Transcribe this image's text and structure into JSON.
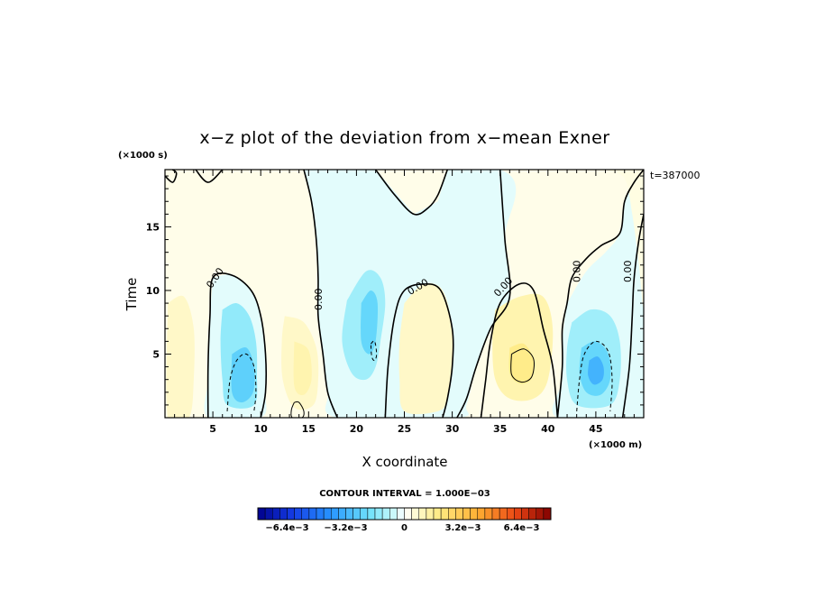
{
  "chart_data": {
    "type": "heatmap",
    "title": "x−z plot of the deviation from x−mean Exner",
    "xlabel": "X coordinate",
    "ylabel": "Time",
    "x_multiplier": "(×1000 m)",
    "y_multiplier": "(×1000 s)",
    "time_label": "t=387000",
    "xlim": [
      0,
      50
    ],
    "ylim": [
      0,
      19.5
    ],
    "x_ticks": [
      5,
      10,
      15,
      20,
      25,
      30,
      35,
      40,
      45
    ],
    "x_tick_labels": [
      "5",
      "10",
      "15",
      "20",
      "25",
      "30",
      "35",
      "40",
      "45"
    ],
    "y_ticks": [
      5,
      10,
      15
    ],
    "y_tick_labels": [
      "5",
      "10",
      "15"
    ],
    "contour_interval_text": "CONTOUR INTERVAL = 1.000E−03",
    "contour_labels": [
      {
        "text": "0.00",
        "x": 5.2,
        "y": 11.0,
        "angle": -55
      },
      {
        "text": "0.00",
        "x": 16.0,
        "y": 9.3,
        "angle": -90
      },
      {
        "text": "0.00",
        "x": 26.4,
        "y": 10.3,
        "angle": -30
      },
      {
        "text": "0.00",
        "x": 35.3,
        "y": 10.3,
        "angle": -48
      },
      {
        "text": "0.00",
        "x": 43.0,
        "y": 11.5,
        "angle": -90
      },
      {
        "text": "0.00",
        "x": 48.3,
        "y": 11.5,
        "angle": -90
      }
    ],
    "colorbar": {
      "vmin": -0.008,
      "vmax": 0.008,
      "n_colors": 40,
      "tick_labels": [
        "−6.4e−3",
        "−3.2e−3",
        "0",
        "3.2e−3",
        "6.4e−3"
      ],
      "tick_values": [
        -0.0064,
        -0.0032,
        0,
        0.0032,
        0.0064
      ]
    },
    "regions": [
      {
        "kind": "fill",
        "value": 0.0003,
        "points": [
          [
            0,
            0
          ],
          [
            50,
            0
          ],
          [
            50,
            19.5
          ],
          [
            0,
            19.5
          ]
        ]
      },
      {
        "kind": "fill",
        "value": -0.0003,
        "points": [
          [
            14.5,
            19.5
          ],
          [
            35,
            19.5
          ],
          [
            35.5,
            14
          ],
          [
            36,
            9
          ],
          [
            34,
            7
          ],
          [
            32.5,
            4
          ],
          [
            31.5,
            1
          ],
          [
            30.5,
            0
          ],
          [
            18,
            0
          ],
          [
            17,
            2
          ],
          [
            16.5,
            5
          ],
          [
            16,
            8
          ],
          [
            16,
            11
          ],
          [
            15.8,
            14
          ],
          [
            15.3,
            17
          ],
          [
            14.5,
            19.5
          ]
        ]
      },
      {
        "kind": "fill",
        "value": -0.0003,
        "points": [
          [
            42,
            9
          ],
          [
            44,
            11.5
          ],
          [
            46,
            13
          ],
          [
            47.5,
            14.5
          ],
          [
            48,
            17
          ],
          [
            49,
            18.5
          ],
          [
            50,
            19.5
          ],
          [
            50,
            0
          ],
          [
            41,
            0
          ],
          [
            41.5,
            3
          ],
          [
            41.5,
            6
          ]
        ]
      },
      {
        "kind": "fill",
        "value": 0.0003,
        "points": [
          [
            22,
            19.5
          ],
          [
            26,
            16
          ],
          [
            28.5,
            17
          ],
          [
            29.5,
            19.5
          ]
        ]
      },
      {
        "kind": "fill",
        "value": -0.0003,
        "points": [
          [
            5,
            11
          ],
          [
            7,
            11.2
          ],
          [
            9,
            10
          ],
          [
            10,
            8
          ],
          [
            10.5,
            5
          ],
          [
            10.5,
            2
          ],
          [
            10,
            0
          ],
          [
            4.5,
            0
          ],
          [
            4.5,
            3
          ],
          [
            4.5,
            6
          ],
          [
            4.8,
            9
          ]
        ]
      },
      {
        "kind": "fill",
        "value": -0.0014,
        "points": [
          [
            6,
            8.5
          ],
          [
            7.5,
            9
          ],
          [
            8.8,
            8
          ],
          [
            9.5,
            6
          ],
          [
            9.6,
            3.5
          ],
          [
            9.3,
            1
          ],
          [
            6.5,
            1
          ],
          [
            6,
            3
          ],
          [
            5.8,
            6
          ]
        ]
      },
      {
        "kind": "fill",
        "value": -0.0024,
        "points": [
          [
            7,
            5
          ],
          [
            8.5,
            5.5
          ],
          [
            9.3,
            4
          ],
          [
            9.2,
            2
          ],
          [
            8,
            1.2
          ],
          [
            7,
            2
          ]
        ]
      },
      {
        "kind": "fill",
        "value": -0.0012,
        "points": [
          [
            19,
            9.2
          ],
          [
            21,
            11.5
          ],
          [
            22.5,
            11
          ],
          [
            23,
            9
          ],
          [
            22.5,
            6
          ],
          [
            22,
            4
          ],
          [
            21,
            3
          ],
          [
            19.5,
            3.5
          ],
          [
            18.5,
            6
          ]
        ]
      },
      {
        "kind": "fill",
        "value": -0.0022,
        "points": [
          [
            20.5,
            9
          ],
          [
            21.5,
            10
          ],
          [
            22.2,
            9
          ],
          [
            22,
            6
          ],
          [
            21.3,
            5
          ],
          [
            20.5,
            6
          ]
        ]
      },
      {
        "kind": "fill",
        "value": 0.0008,
        "points": [
          [
            25,
            9
          ],
          [
            27,
            10.5
          ],
          [
            29,
            10
          ],
          [
            30,
            7
          ],
          [
            30,
            4
          ],
          [
            29.5,
            1.5
          ],
          [
            28.5,
            0.5
          ],
          [
            25,
            0.5
          ],
          [
            24.5,
            3
          ],
          [
            24.5,
            6
          ]
        ]
      },
      {
        "kind": "fill",
        "value": 0.0008,
        "points": [
          [
            12.5,
            8
          ],
          [
            14.5,
            7.5
          ],
          [
            15.8,
            5.5
          ],
          [
            16,
            3
          ],
          [
            15.5,
            1
          ],
          [
            13.5,
            0.8
          ],
          [
            12.3,
            3
          ],
          [
            12.2,
            6
          ]
        ]
      },
      {
        "kind": "fill",
        "value": 0.0012,
        "points": [
          [
            13.5,
            6
          ],
          [
            15,
            5.3
          ],
          [
            15.3,
            3
          ],
          [
            14.5,
            1.8
          ],
          [
            13.5,
            2.5
          ]
        ]
      },
      {
        "kind": "fill",
        "value": 0.0008,
        "points": [
          [
            0.3,
            9
          ],
          [
            2,
            9.5
          ],
          [
            3,
            7
          ],
          [
            3,
            3
          ],
          [
            2.5,
            0
          ],
          [
            0.3,
            0
          ]
        ]
      },
      {
        "kind": "fill",
        "value": 0.0012,
        "points": [
          [
            34.5,
            8.5
          ],
          [
            37,
            9.5
          ],
          [
            39.5,
            9.5
          ],
          [
            40.5,
            7
          ],
          [
            40,
            3
          ],
          [
            38.5,
            1.5
          ],
          [
            36,
            1.5
          ],
          [
            34.5,
            3
          ],
          [
            34.2,
            6
          ]
        ]
      },
      {
        "kind": "fill",
        "value": 0.0018,
        "points": [
          [
            36,
            5.5
          ],
          [
            37.5,
            5.8
          ],
          [
            38.5,
            4.5
          ],
          [
            38.2,
            3
          ],
          [
            37,
            2.7
          ],
          [
            36,
            3.5
          ]
        ]
      },
      {
        "kind": "fill",
        "value": -0.0012,
        "points": [
          [
            42.5,
            7.5
          ],
          [
            44.5,
            8.5
          ],
          [
            46.5,
            8
          ],
          [
            47.5,
            6
          ],
          [
            47.5,
            3
          ],
          [
            46.5,
            1
          ],
          [
            43,
            1
          ],
          [
            42,
            3
          ],
          [
            42,
            5.5
          ]
        ]
      },
      {
        "kind": "fill",
        "value": -0.0022,
        "points": [
          [
            43.5,
            5.5
          ],
          [
            45,
            6
          ],
          [
            46.3,
            5
          ],
          [
            46.5,
            3
          ],
          [
            45.5,
            1.8
          ],
          [
            44,
            2
          ],
          [
            43.3,
            3.5
          ]
        ]
      },
      {
        "kind": "fill",
        "value": -0.0032,
        "points": [
          [
            44.3,
            4.5
          ],
          [
            45.2,
            4.8
          ],
          [
            45.8,
            4
          ],
          [
            45.7,
            3
          ],
          [
            44.8,
            2.6
          ],
          [
            44.2,
            3.3
          ]
        ]
      },
      {
        "kind": "fill",
        "value": 0.0004,
        "points": [
          [
            46,
            19.5
          ],
          [
            48,
            18.8
          ],
          [
            48.8,
            16
          ],
          [
            49.5,
            12
          ],
          [
            50,
            9
          ],
          [
            50,
            19.5
          ]
        ]
      }
    ],
    "contours": [
      {
        "style": "solid",
        "width": 1.6,
        "points": [
          [
            14.5,
            19.5
          ],
          [
            15.3,
            17
          ],
          [
            15.8,
            14
          ],
          [
            16,
            11
          ],
          [
            16,
            8
          ],
          [
            16.5,
            5
          ],
          [
            17,
            2
          ],
          [
            18,
            0
          ]
        ]
      },
      {
        "style": "solid",
        "width": 1.6,
        "points": [
          [
            22,
            19.5
          ],
          [
            24,
            17.5
          ],
          [
            26,
            16
          ],
          [
            27.5,
            16.5
          ],
          [
            28.5,
            17.5
          ],
          [
            29.5,
            19.5
          ]
        ]
      },
      {
        "style": "solid",
        "width": 1.6,
        "points": [
          [
            35,
            19.5
          ],
          [
            35.5,
            14
          ],
          [
            36,
            9.5
          ],
          [
            34,
            7
          ],
          [
            32.5,
            4
          ],
          [
            31.5,
            1.5
          ],
          [
            30.5,
            0
          ]
        ]
      },
      {
        "style": "solid",
        "width": 1.6,
        "points": [
          [
            4.5,
            0
          ],
          [
            4.5,
            4
          ],
          [
            4.7,
            8
          ],
          [
            5,
            11
          ],
          [
            7,
            11.2
          ],
          [
            9,
            10
          ],
          [
            10,
            8
          ],
          [
            10.5,
            5
          ],
          [
            10.5,
            2
          ],
          [
            10,
            0
          ]
        ]
      },
      {
        "style": "solid",
        "width": 1.6,
        "points": [
          [
            23,
            0
          ],
          [
            23.3,
            4
          ],
          [
            24,
            8
          ],
          [
            25,
            10
          ],
          [
            27,
            10.5
          ],
          [
            28.8,
            10
          ],
          [
            30,
            7
          ],
          [
            30,
            4
          ],
          [
            29.5,
            1.5
          ],
          [
            29,
            0
          ]
        ]
      },
      {
        "style": "solid",
        "width": 1.6,
        "points": [
          [
            33,
            0
          ],
          [
            33.5,
            3
          ],
          [
            34,
            6
          ],
          [
            35,
            9
          ],
          [
            37,
            10.5
          ],
          [
            38.5,
            10
          ],
          [
            39.5,
            7
          ],
          [
            40.5,
            4
          ],
          [
            41,
            0
          ]
        ]
      },
      {
        "style": "solid",
        "width": 1.6,
        "points": [
          [
            41,
            0
          ],
          [
            41.5,
            4
          ],
          [
            41.5,
            7
          ],
          [
            42,
            9
          ],
          [
            42.5,
            11
          ],
          [
            44,
            12.5
          ],
          [
            45.5,
            13.5
          ],
          [
            47.5,
            14.5
          ],
          [
            48,
            17
          ],
          [
            49,
            18.5
          ],
          [
            50,
            19.5
          ]
        ]
      },
      {
        "style": "solid",
        "width": 1.6,
        "points": [
          [
            47.8,
            0
          ],
          [
            48.5,
            4
          ],
          [
            48.8,
            8
          ],
          [
            49,
            11
          ],
          [
            49.5,
            14
          ],
          [
            50,
            16
          ]
        ]
      },
      {
        "style": "solid",
        "width": 1.6,
        "points": [
          [
            0,
            19
          ],
          [
            0.8,
            18.5
          ],
          [
            1.2,
            19.2
          ],
          [
            0.8,
            19.5
          ]
        ]
      },
      {
        "style": "solid",
        "width": 1.6,
        "points": [
          [
            3.2,
            19.5
          ],
          [
            4.5,
            18.5
          ],
          [
            6,
            19.5
          ]
        ]
      },
      {
        "style": "solid",
        "width": 1.0,
        "points": [
          [
            36.2,
            5
          ],
          [
            37.5,
            5.4
          ],
          [
            38.5,
            4.6
          ],
          [
            38.3,
            3.2
          ],
          [
            37.2,
            2.8
          ],
          [
            36.2,
            3.4
          ],
          [
            36.2,
            5
          ]
        ]
      },
      {
        "style": "solid",
        "width": 1.0,
        "points": [
          [
            13.5,
            1.2
          ],
          [
            14,
            1.2
          ],
          [
            14.5,
            0.5
          ],
          [
            14.3,
            0
          ],
          [
            13.3,
            0
          ],
          [
            13.2,
            0.6
          ],
          [
            13.5,
            1.2
          ]
        ]
      },
      {
        "style": "dashed",
        "width": 1.0,
        "points": [
          [
            6.5,
            0.5
          ],
          [
            6.8,
            3
          ],
          [
            7.5,
            4.5
          ],
          [
            8.5,
            5
          ],
          [
            9.3,
            4
          ],
          [
            9.5,
            2
          ],
          [
            9.3,
            0.5
          ]
        ]
      },
      {
        "style": "dashed",
        "width": 1.0,
        "points": [
          [
            43,
            0.5
          ],
          [
            43.3,
            3
          ],
          [
            43.8,
            5
          ],
          [
            45,
            6
          ],
          [
            46.3,
            5.2
          ],
          [
            46.7,
            3
          ],
          [
            46.5,
            0.5
          ]
        ]
      },
      {
        "style": "dashed",
        "width": 1.0,
        "points": [
          [
            21.5,
            5.8
          ],
          [
            21.9,
            6
          ],
          [
            22.1,
            5
          ],
          [
            21.9,
            4.5
          ],
          [
            21.6,
            4.8
          ],
          [
            21.5,
            5.8
          ]
        ]
      }
    ]
  }
}
